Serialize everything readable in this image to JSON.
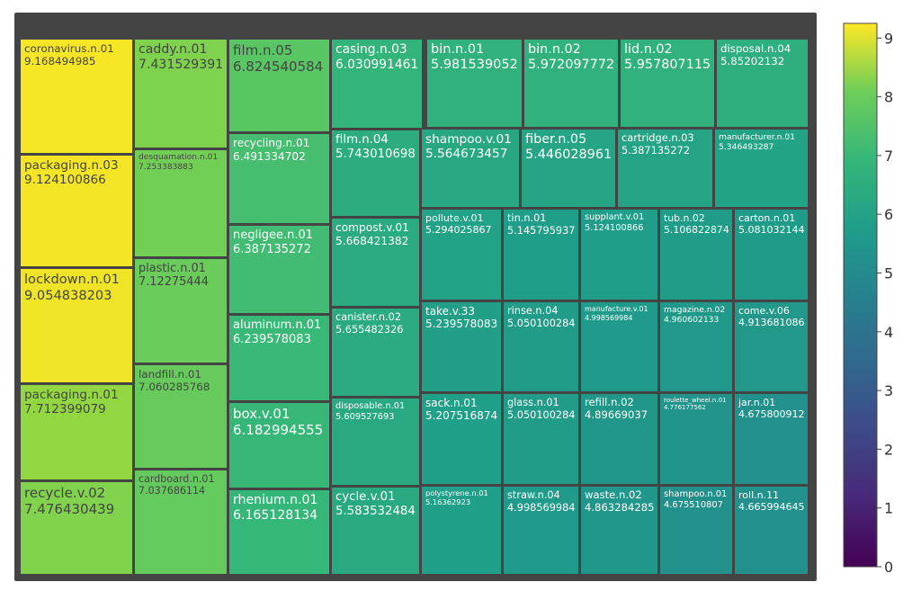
{
  "chart_data": {
    "type": "treemap",
    "colorscale": "viridis",
    "color_range": [
      0,
      9.25
    ],
    "colorbar_ticks": [
      "0",
      "1",
      "2",
      "3",
      "4",
      "5",
      "6",
      "7",
      "8",
      "9"
    ],
    "items": [
      {
        "label": "coronavirus.n.01",
        "value": "9.168494985"
      },
      {
        "label": "packaging.n.03",
        "value": "9.124100866"
      },
      {
        "label": "lockdown.n.01",
        "value": "9.054838203"
      },
      {
        "label": "packaging.n.01",
        "value": "7.712399079"
      },
      {
        "label": "recycle.v.02",
        "value": "7.476430439"
      },
      {
        "label": "caddy.n.01",
        "value": "7.431529391"
      },
      {
        "label": "desquamation.n.01",
        "value": "7.253383883"
      },
      {
        "label": "plastic.n.01",
        "value": "7.12275444"
      },
      {
        "label": "landfill.n.01",
        "value": "7.060285768"
      },
      {
        "label": "cardboard.n.01",
        "value": "7.037686114"
      },
      {
        "label": "film.n.05",
        "value": "6.824540584"
      },
      {
        "label": "recycling.n.01",
        "value": "6.491334702"
      },
      {
        "label": "negligee.n.01",
        "value": "6.387135272"
      },
      {
        "label": "aluminum.n.01",
        "value": "6.239578083"
      },
      {
        "label": "box.v.01",
        "value": "6.182994555"
      },
      {
        "label": "rhenium.n.01",
        "value": "6.165128134"
      },
      {
        "label": "casing.n.03",
        "value": "6.030991461"
      },
      {
        "label": "film.n.04",
        "value": "5.743010698"
      },
      {
        "label": "compost.v.01",
        "value": "5.668421382"
      },
      {
        "label": "canister.n.02",
        "value": "5.655482326"
      },
      {
        "label": "disposable.n.01",
        "value": "5.609527693"
      },
      {
        "label": "cycle.v.01",
        "value": "5.583532484"
      },
      {
        "label": "bin.n.01",
        "value": "5.981539052"
      },
      {
        "label": "bin.n.02",
        "value": "5.972097772"
      },
      {
        "label": "lid.n.02",
        "value": "5.957807115"
      },
      {
        "label": "disposal.n.04",
        "value": "5.85202132"
      },
      {
        "label": "shampoo.v.01",
        "value": "5.564673457"
      },
      {
        "label": "fiber.n.05",
        "value": "5.446028961"
      },
      {
        "label": "cartridge.n.03",
        "value": "5.387135272"
      },
      {
        "label": "manufacturer.n.01",
        "value": "5.346493287"
      },
      {
        "label": "pollute.v.01",
        "value": "5.294025867"
      },
      {
        "label": "tin.n.01",
        "value": "5.145795937"
      },
      {
        "label": "supplant.v.01",
        "value": "5.124100866"
      },
      {
        "label": "tub.n.02",
        "value": "5.106822874"
      },
      {
        "label": "carton.n.01",
        "value": "5.081032144"
      },
      {
        "label": "take.v.33",
        "value": "5.239578083"
      },
      {
        "label": "rinse.n.04",
        "value": "5.050100284"
      },
      {
        "label": "manufacture.v.01",
        "value": "4.998569984"
      },
      {
        "label": "magazine.n.02",
        "value": "4.960602133"
      },
      {
        "label": "come.v.06",
        "value": "4.913681086"
      },
      {
        "label": "sack.n.01",
        "value": "5.207516874"
      },
      {
        "label": "glass.n.01",
        "value": "5.050100284"
      },
      {
        "label": "refill.n.02",
        "value": "4.89669037"
      },
      {
        "label": "roulette_wheel.n.01",
        "value": "4.776177562"
      },
      {
        "label": "jar.n.01",
        "value": "4.675800912"
      },
      {
        "label": "polystyrene.n.01",
        "value": "5.16362923"
      },
      {
        "label": "straw.n.04",
        "value": "4.998569984"
      },
      {
        "label": "waste.n.02",
        "value": "4.863284285"
      },
      {
        "label": "shampoo.n.01",
        "value": "4.675510807"
      },
      {
        "label": "roll.n.11",
        "value": "4.665994645"
      }
    ]
  }
}
